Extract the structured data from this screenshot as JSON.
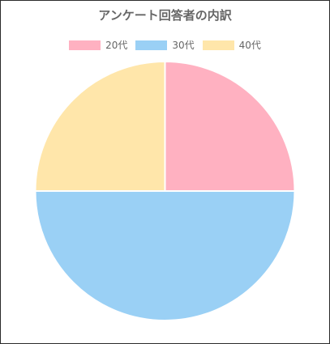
{
  "chart_data": {
    "type": "pie",
    "title": "アンケート回答者の内訳",
    "legend_position": "top",
    "slices": [
      {
        "label": "20代",
        "value": 25,
        "color": "#ffb1c1"
      },
      {
        "label": "30代",
        "value": 50,
        "color": "#9ad0f5"
      },
      {
        "label": "40代",
        "value": 25,
        "color": "#ffe6aa"
      }
    ]
  }
}
